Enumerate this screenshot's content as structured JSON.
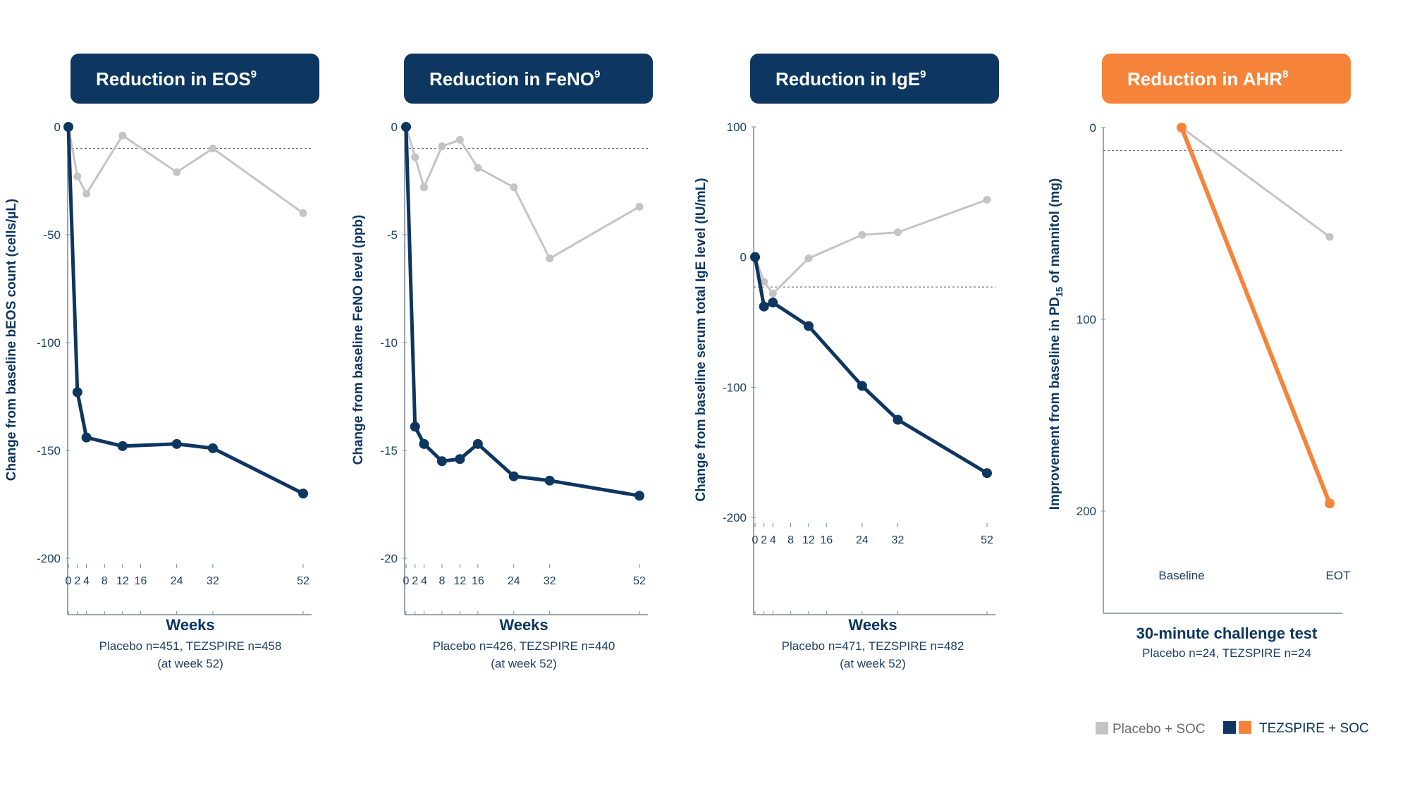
{
  "colors": {
    "navy": "#0d3660",
    "orange": "#f5843a",
    "placebo": "#c4c4c4",
    "axis": "#7a8a99",
    "text": "#1f3f63"
  },
  "legend": [
    {
      "label": "Placebo + SOC",
      "swatches": [
        "#c4c4c4"
      ]
    },
    {
      "label": "TEZSPIRE + SOC",
      "swatches": [
        "#0d3660",
        "#f5843a"
      ]
    }
  ],
  "chart_data": [
    {
      "type": "line",
      "title": "Reduction in EOS",
      "title_sup": "9",
      "ylabel": "Change from baseline bEOS count (cells/µL)",
      "xlabel": "Weeks",
      "note": [
        "Placebo n=451, TEZSPIRE n=458",
        "(at week 52)"
      ],
      "ylim": [
        -200,
        0
      ],
      "yticks": [
        0,
        -50,
        -100,
        -150,
        -200
      ],
      "xticks": [
        0,
        2,
        4,
        8,
        12,
        16,
        24,
        32,
        52
      ],
      "xlim": [
        0,
        52
      ],
      "reference_y": -10,
      "series": [
        {
          "name": "Placebo + SOC",
          "color": "#c4c4c4",
          "x": [
            0,
            2,
            4,
            12,
            24,
            32,
            52
          ],
          "y": [
            0,
            -23,
            -31,
            -4,
            -21,
            -10,
            -40
          ]
        },
        {
          "name": "TEZSPIRE + SOC",
          "color": "#0d3660",
          "x": [
            0,
            2,
            4,
            12,
            24,
            32,
            52
          ],
          "y": [
            0,
            -123,
            -144,
            -148,
            -147,
            -149,
            -170
          ]
        }
      ]
    },
    {
      "type": "line",
      "title": "Reduction in FeNO",
      "title_sup": "9",
      "ylabel": "Change from baseline FeNO level (ppb)",
      "xlabel": "Weeks",
      "note": [
        "Placebo n=426, TEZSPIRE n=440",
        "(at week 52)"
      ],
      "ylim": [
        -20,
        0
      ],
      "yticks": [
        0,
        -5,
        -10,
        -15,
        -20
      ],
      "xticks": [
        0,
        2,
        4,
        8,
        12,
        16,
        24,
        32,
        52
      ],
      "xlim": [
        0,
        52
      ],
      "reference_y": -1,
      "series": [
        {
          "name": "Placebo + SOC",
          "color": "#c4c4c4",
          "x": [
            0,
            2,
            4,
            8,
            12,
            16,
            24,
            32,
            52
          ],
          "y": [
            0,
            -1.4,
            -2.8,
            -0.9,
            -0.6,
            -1.9,
            -2.8,
            -6.1,
            -3.7
          ]
        },
        {
          "name": "TEZSPIRE + SOC",
          "color": "#0d3660",
          "x": [
            0,
            2,
            4,
            8,
            12,
            16,
            24,
            32,
            52
          ],
          "y": [
            0,
            -13.9,
            -14.7,
            -15.5,
            -15.4,
            -14.7,
            -16.2,
            -16.4,
            -17.1
          ]
        }
      ]
    },
    {
      "type": "line",
      "title": "Reduction in IgE",
      "title_sup": "9",
      "ylabel": "Change from baseline serum total IgE level (IU/mL)",
      "xlabel": "Weeks",
      "note": [
        "Placebo n=471, TEZSPIRE n=482",
        "(at week 52)"
      ],
      "ylim": [
        -200,
        100
      ],
      "yticks": [
        100,
        0,
        -100,
        -200
      ],
      "xticks": [
        0,
        2,
        4,
        8,
        12,
        16,
        24,
        32,
        52
      ],
      "xlim": [
        0,
        52
      ],
      "reference_y": -23,
      "series": [
        {
          "name": "Placebo + SOC",
          "color": "#c4c4c4",
          "x": [
            0,
            2,
            4,
            12,
            24,
            32,
            52
          ],
          "y": [
            0,
            -19,
            -28,
            -1,
            17,
            19,
            44
          ]
        },
        {
          "name": "TEZSPIRE + SOC",
          "color": "#0d3660",
          "x": [
            0,
            2,
            4,
            12,
            24,
            32,
            52
          ],
          "y": [
            0,
            -38,
            -35,
            -53,
            -99,
            -125,
            -166
          ]
        }
      ]
    },
    {
      "type": "line",
      "title": "Reduction in AHR",
      "title_sup": "8",
      "ylabel_parts": [
        "Improvement from baseline in PD",
        "15",
        " of mannitol (mg)"
      ],
      "xlabel": "30-minute challenge test",
      "note": [
        "Placebo n=24, TEZSPIRE n=24"
      ],
      "ylim": [
        0,
        200
      ],
      "yticks": [
        0,
        100,
        200
      ],
      "categories": [
        "Baseline",
        "EOT"
      ],
      "reference_y": 12,
      "series": [
        {
          "name": "Placebo + SOC",
          "color": "#c4c4c4",
          "values": [
            0,
            57
          ]
        },
        {
          "name": "TEZSPIRE + SOC",
          "color": "#f5843a",
          "values": [
            0,
            196
          ]
        }
      ]
    }
  ]
}
